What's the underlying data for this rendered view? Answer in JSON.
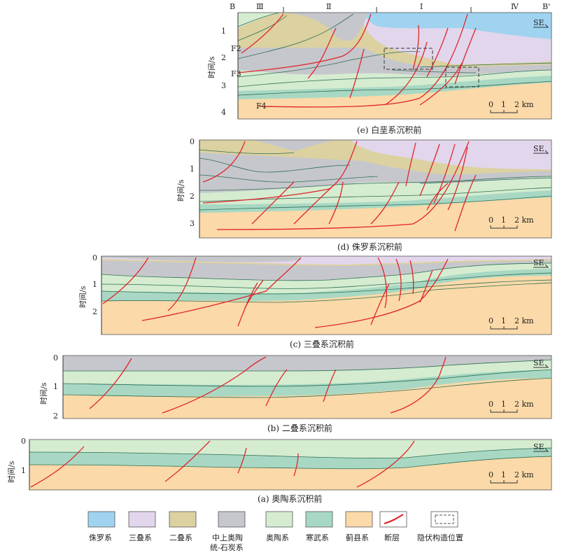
{
  "panels": {
    "e": {
      "caption": "(e) 白垩系沉积前",
      "axis_label": "时间/s",
      "ticks": [
        "1",
        "2",
        "3",
        "4"
      ],
      "section_start": "B",
      "section_end": "B'",
      "zones": [
        "Ⅲ",
        "Ⅱ",
        "Ⅰ",
        "Ⅳ"
      ],
      "fault_labels": [
        "F2",
        "F3",
        "F4"
      ],
      "direction": "SE",
      "scale": [
        "0",
        "1",
        "2 km"
      ]
    },
    "d": {
      "caption": "(d) 侏罗系沉积前",
      "axis_label": "时间/s",
      "ticks": [
        "0",
        "1",
        "2",
        "3"
      ],
      "direction": "SE",
      "scale": [
        "0",
        "1",
        "2 km"
      ]
    },
    "c": {
      "caption": "(c) 三叠系沉积前",
      "axis_label": "时间/s",
      "ticks": [
        "0",
        "1",
        "2"
      ],
      "direction": "SE",
      "scale": [
        "0",
        "1",
        "2 km"
      ]
    },
    "b": {
      "caption": "(b) 二叠系沉积前",
      "axis_label": "时间/s",
      "ticks": [
        "0",
        "1",
        "2"
      ],
      "direction": "SE",
      "scale": [
        "0",
        "1",
        "2 km"
      ]
    },
    "a": {
      "caption": "(a) 奥陶系沉积前",
      "axis_label": "时间/s",
      "ticks": [
        "0",
        "1"
      ],
      "direction": "SE",
      "scale": [
        "0",
        "1",
        "2 km"
      ]
    }
  },
  "legend": [
    {
      "label": "侏罗系",
      "color": "#9fd3f0"
    },
    {
      "label": "三叠系",
      "color": "#e2d6ec"
    },
    {
      "label": "二叠系",
      "color": "#dcd1a0"
    },
    {
      "label": "中上奥陶统-石炭系",
      "label_lines": [
        "中上奥陶",
        "统-石炭系"
      ],
      "color": "#c6c7cc"
    },
    {
      "label": "奥陶系",
      "color": "#d5ecd0"
    },
    {
      "label": "寒武系",
      "color": "#a8d8c4"
    },
    {
      "label": "蓟县系",
      "color": "#fbd9a8"
    },
    {
      "label": "断层",
      "color": "#e0242a"
    },
    {
      "label": "隐伏构造位置",
      "color": "#555555"
    }
  ]
}
